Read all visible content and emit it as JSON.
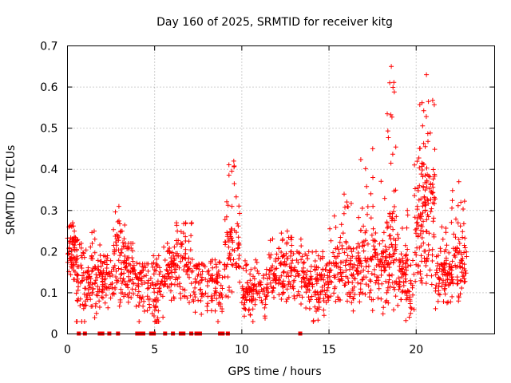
{
  "chart_data": {
    "type": "scatter",
    "title": "Day 160 of 2025, SRMTID for receiver kitg",
    "xlabel": "GPS time / hours",
    "ylabel": "SRMTID / TECUs",
    "xlim": [
      0,
      24.5
    ],
    "ylim": [
      0,
      0.7
    ],
    "xticks": [
      "0",
      "5",
      "10",
      "15",
      "20"
    ],
    "yticks": [
      "0",
      "0.1",
      "0.2",
      "0.3",
      "0.4",
      "0.5",
      "0.6",
      "0.7"
    ],
    "grid": true,
    "marker": "plus",
    "color": "#ff0000",
    "zero_markers_x": [
      0.65,
      1.0,
      1.85,
      2.0,
      2.4,
      2.9,
      4.0,
      4.2,
      4.35,
      4.8,
      4.95,
      5.6,
      6.05,
      6.5,
      6.65,
      7.1,
      7.4,
      7.6,
      8.75,
      8.9,
      9.2,
      13.35
    ],
    "clusters": [
      {
        "x0": 0.0,
        "x1": 0.6,
        "center": 0.19,
        "spread": 0.03,
        "peak": 0.27,
        "n": 60
      },
      {
        "x0": 0.5,
        "x1": 1.1,
        "center": 0.1,
        "spread": 0.05,
        "peak": 0.22,
        "n": 45
      },
      {
        "x0": 1.1,
        "x1": 1.9,
        "center": 0.13,
        "spread": 0.04,
        "peak": 0.25,
        "n": 70
      },
      {
        "x0": 1.9,
        "x1": 2.6,
        "center": 0.13,
        "spread": 0.03,
        "peak": 0.19,
        "n": 50
      },
      {
        "x0": 2.6,
        "x1": 3.3,
        "center": 0.16,
        "spread": 0.05,
        "peak": 0.31,
        "n": 65
      },
      {
        "x0": 3.3,
        "x1": 4.0,
        "center": 0.15,
        "spread": 0.04,
        "peak": 0.22,
        "n": 55
      },
      {
        "x0": 4.0,
        "x1": 4.9,
        "center": 0.11,
        "spread": 0.04,
        "peak": 0.17,
        "n": 55
      },
      {
        "x0": 4.9,
        "x1": 5.5,
        "center": 0.1,
        "spread": 0.05,
        "peak": 0.19,
        "n": 50
      },
      {
        "x0": 5.5,
        "x1": 6.2,
        "center": 0.15,
        "spread": 0.03,
        "peak": 0.22,
        "n": 55
      },
      {
        "x0": 6.2,
        "x1": 7.2,
        "center": 0.17,
        "spread": 0.05,
        "peak": 0.27,
        "n": 70
      },
      {
        "x0": 7.2,
        "x1": 8.0,
        "center": 0.12,
        "spread": 0.03,
        "peak": 0.17,
        "n": 40
      },
      {
        "x0": 8.0,
        "x1": 8.9,
        "center": 0.11,
        "spread": 0.04,
        "peak": 0.18,
        "n": 60
      },
      {
        "x0": 9.0,
        "x1": 9.9,
        "center": 0.2,
        "spread": 0.05,
        "peak": 0.42,
        "n": 75
      },
      {
        "x0": 10.0,
        "x1": 11.5,
        "center": 0.1,
        "spread": 0.03,
        "peak": 0.18,
        "n": 110
      },
      {
        "x0": 11.5,
        "x1": 13.6,
        "center": 0.14,
        "spread": 0.035,
        "peak": 0.25,
        "n": 150
      },
      {
        "x0": 13.6,
        "x1": 15.0,
        "center": 0.11,
        "spread": 0.035,
        "peak": 0.2,
        "n": 110
      },
      {
        "x0": 15.0,
        "x1": 16.8,
        "center": 0.15,
        "spread": 0.04,
        "peak": 0.34,
        "n": 140
      },
      {
        "x0": 16.8,
        "x1": 18.3,
        "center": 0.17,
        "spread": 0.05,
        "peak": 0.45,
        "n": 120
      },
      {
        "x0": 18.3,
        "x1": 19.0,
        "center": 0.18,
        "spread": 0.06,
        "peak": 0.65,
        "n": 80
      },
      {
        "x0": 19.0,
        "x1": 19.9,
        "center": 0.13,
        "spread": 0.04,
        "peak": 0.3,
        "n": 75
      },
      {
        "x0": 19.9,
        "x1": 21.1,
        "center": 0.28,
        "spread": 0.09,
        "peak": 0.63,
        "n": 150
      },
      {
        "x0": 21.1,
        "x1": 22.0,
        "center": 0.14,
        "spread": 0.035,
        "peak": 0.26,
        "n": 80
      },
      {
        "x0": 22.0,
        "x1": 22.9,
        "center": 0.17,
        "spread": 0.05,
        "peak": 0.37,
        "n": 80
      }
    ]
  }
}
